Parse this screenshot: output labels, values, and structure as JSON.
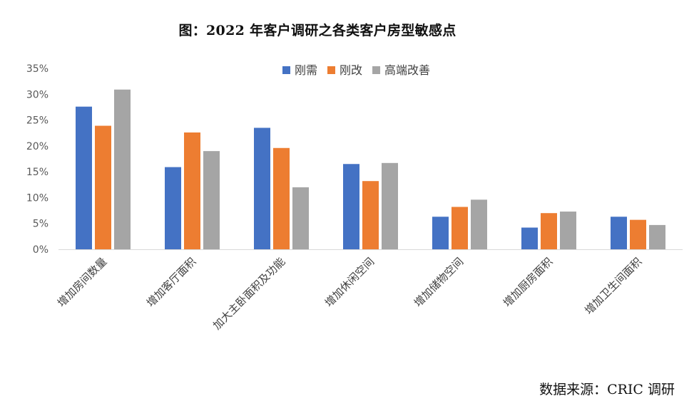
{
  "title": "图：2022 年客户调研之各类客户房型敏感点",
  "source": "数据来源：CRIC 调研",
  "chart_data": {
    "type": "bar",
    "categories": [
      "增加房间数量",
      "增加客厅面积",
      "加大主卧面积及功能",
      "增加休闲空间",
      "增加储物空间",
      "增加厨房面积",
      "增加卫生间面积"
    ],
    "series": [
      {
        "name": "刚需",
        "color": "#4472C4",
        "values": [
          27.6,
          15.9,
          23.5,
          16.5,
          6.3,
          4.2,
          6.3
        ]
      },
      {
        "name": "刚改",
        "color": "#ED7D31",
        "values": [
          23.9,
          22.6,
          19.6,
          13.2,
          8.2,
          7.0,
          5.7
        ]
      },
      {
        "name": "高端改善",
        "color": "#A5A5A5",
        "values": [
          30.9,
          19.0,
          12.0,
          16.7,
          9.6,
          7.3,
          4.7
        ]
      }
    ],
    "yticks": [
      "0%",
      "5%",
      "10%",
      "15%",
      "20%",
      "25%",
      "30%",
      "35%"
    ],
    "ylim": [
      0,
      35
    ],
    "ylabel": "",
    "xlabel": "",
    "legend_position": "top-right",
    "grid": false
  }
}
